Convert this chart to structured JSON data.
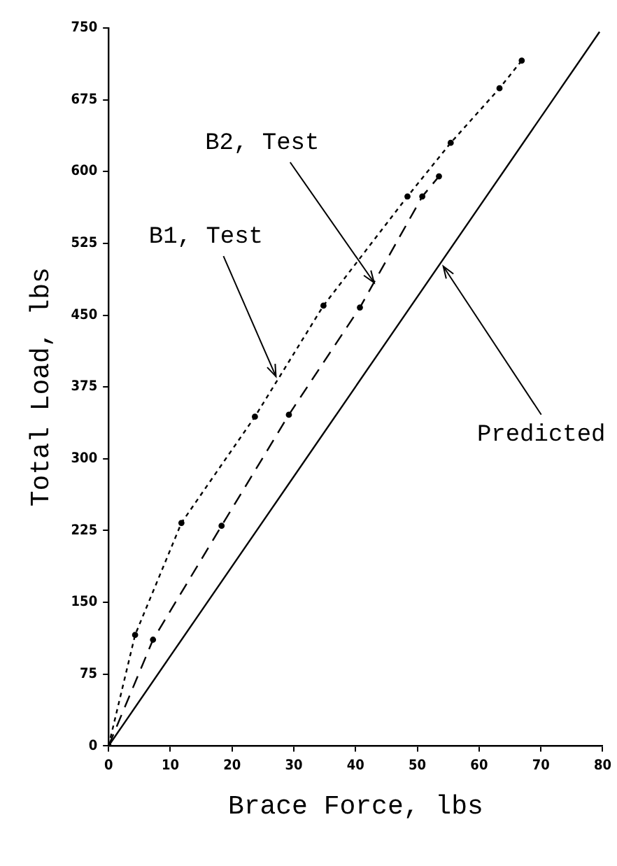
{
  "chart_data": {
    "type": "line",
    "xlabel": "Brace Force, lbs",
    "ylabel": "Total Load, lbs",
    "xlim": [
      0,
      80
    ],
    "xticks": [
      0,
      10,
      20,
      30,
      40,
      50,
      60,
      70,
      80
    ],
    "ylim": [
      0,
      750
    ],
    "yticks": [
      0,
      75,
      150,
      225,
      300,
      375,
      450,
      525,
      600,
      675,
      750
    ],
    "grid": false,
    "legend": false,
    "series": [
      {
        "color": "#000000",
        "line_style": "dotted",
        "marker": "circle",
        "x": [
          0,
          4.3,
          11.8,
          23.7,
          34.8,
          48.4,
          55.4,
          63.3,
          66.9
        ],
        "values": [
          0,
          116,
          233,
          344,
          460,
          574,
          630,
          687,
          716
        ]
      },
      {
        "color": "#000000",
        "line_style": "dashed",
        "marker": "circle",
        "x": [
          0,
          7.2,
          18.3,
          29.2,
          40.7,
          50.8,
          53.5
        ],
        "values": [
          0,
          111,
          230,
          346,
          458,
          574,
          595
        ]
      },
      {
        "color": "#000000",
        "line_style": "solid",
        "marker": "none",
        "x": [
          0,
          79.5
        ],
        "values": [
          0,
          746
        ]
      }
    ],
    "annotations": [
      {
        "text": "B1, Test",
        "x": 27.1,
        "y": 386
      },
      {
        "text": "B2, Test",
        "x": 43,
        "y": 484
      },
      {
        "text": "Predicted",
        "x": 54.2,
        "y": 501
      }
    ]
  }
}
